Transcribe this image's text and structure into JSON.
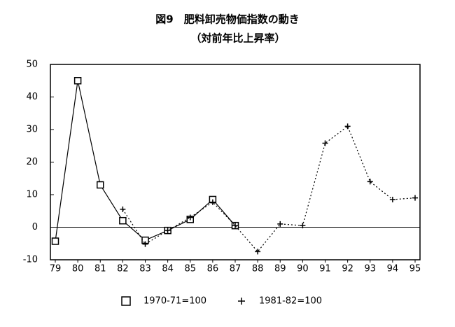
{
  "chart_data": {
    "type": "line",
    "title": "図9　肥料卸売物価指数の動き",
    "subtitle": "（対前年比上昇率）",
    "categories": [
      "79",
      "80",
      "81",
      "82",
      "83",
      "84",
      "85",
      "86",
      "87",
      "88",
      "89",
      "90",
      "91",
      "92",
      "93",
      "94",
      "95"
    ],
    "series": [
      {
        "name": "1970-71=100",
        "color": "#000000",
        "marker": "square",
        "line_style": "solid",
        "values": [
          -4.3,
          45,
          13,
          2,
          -4,
          -1,
          2.4,
          8.5,
          0.5,
          null,
          null,
          null,
          null,
          null,
          null,
          null,
          null
        ]
      },
      {
        "name": "1981-82=100",
        "color": "#000000",
        "marker": "plus",
        "line_style": "dotted",
        "values": [
          null,
          null,
          null,
          5.5,
          -5.2,
          -1,
          3,
          7.7,
          0.5,
          -7.5,
          1,
          0.5,
          25.8,
          31,
          14,
          8.5,
          9
        ]
      }
    ],
    "ylim": [
      -10,
      50
    ],
    "yticks": [
      -10,
      0,
      10,
      20,
      30,
      40,
      50
    ],
    "zero_line": true,
    "legend": "bottom"
  }
}
